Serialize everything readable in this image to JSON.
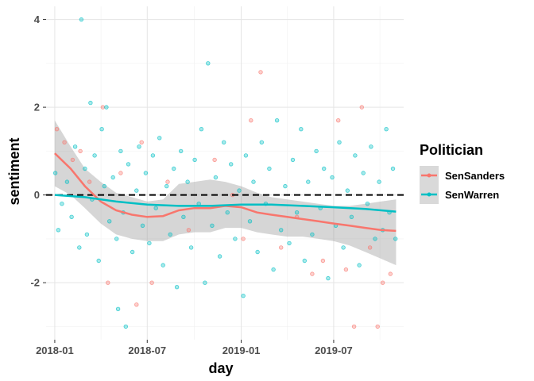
{
  "chart_data": {
    "type": "scatter",
    "xlabel": "day",
    "ylabel": "sentiment",
    "x_axis_type": "date",
    "xlim": [
      "2017-12-15",
      "2019-11-15"
    ],
    "ylim": [
      -3.3,
      4.3
    ],
    "x_ticks": [
      {
        "value": "2018-01-01",
        "label": "2018-01"
      },
      {
        "value": "2018-07-01",
        "label": "2018-07"
      },
      {
        "value": "2019-01-01",
        "label": "2019-01"
      },
      {
        "value": "2019-07-01",
        "label": "2019-07"
      }
    ],
    "y_ticks": [
      -2,
      0,
      2,
      4
    ],
    "y_tick_labels": [
      "-2",
      "0",
      "2",
      "4"
    ],
    "grid": true,
    "reference_line": {
      "y": 0,
      "style": "dashed",
      "color": "#000000"
    },
    "legend": {
      "title": "Politician",
      "position": "right"
    },
    "series": [
      {
        "name": "SenSanders",
        "color": "#F8766D",
        "points": [
          [
            "2018-01-05",
            1.5
          ],
          [
            "2018-01-20",
            1.2
          ],
          [
            "2018-02-05",
            0.8
          ],
          [
            "2018-02-20",
            1.0
          ],
          [
            "2018-03-10",
            0.3
          ],
          [
            "2018-04-05",
            2.0
          ],
          [
            "2018-04-15",
            -2.0
          ],
          [
            "2018-05-10",
            0.5
          ],
          [
            "2018-06-10",
            -2.5
          ],
          [
            "2018-06-20",
            1.2
          ],
          [
            "2018-07-10",
            -2.0
          ],
          [
            "2018-08-10",
            0.3
          ],
          [
            "2018-09-20",
            -0.8
          ],
          [
            "2018-11-10",
            0.8
          ],
          [
            "2018-12-15",
            0.0
          ],
          [
            "2019-01-05",
            -1.0
          ],
          [
            "2019-01-20",
            1.7
          ],
          [
            "2019-02-08",
            2.8
          ],
          [
            "2019-03-20",
            -1.2
          ],
          [
            "2019-04-20",
            -0.5
          ],
          [
            "2019-05-20",
            -1.8
          ],
          [
            "2019-06-10",
            -1.5
          ],
          [
            "2019-07-10",
            1.7
          ],
          [
            "2019-07-25",
            -1.7
          ],
          [
            "2019-08-10",
            -3.0
          ],
          [
            "2019-08-25",
            2.0
          ],
          [
            "2019-09-10",
            -1.2
          ],
          [
            "2019-09-25",
            -3.0
          ],
          [
            "2019-10-05",
            -2.0
          ],
          [
            "2019-10-20",
            -1.8
          ]
        ],
        "trend": [
          [
            "2018-01-01",
            0.95
          ],
          [
            "2018-02-01",
            0.6
          ],
          [
            "2018-03-01",
            0.2
          ],
          [
            "2018-04-01",
            -0.15
          ],
          [
            "2018-05-01",
            -0.35
          ],
          [
            "2018-06-01",
            -0.45
          ],
          [
            "2018-07-01",
            -0.5
          ],
          [
            "2018-08-01",
            -0.48
          ],
          [
            "2018-09-01",
            -0.35
          ],
          [
            "2018-10-01",
            -0.3
          ],
          [
            "2018-11-01",
            -0.3
          ],
          [
            "2018-12-01",
            -0.25
          ],
          [
            "2019-01-01",
            -0.28
          ],
          [
            "2019-02-01",
            -0.4
          ],
          [
            "2019-03-01",
            -0.45
          ],
          [
            "2019-04-01",
            -0.5
          ],
          [
            "2019-05-01",
            -0.55
          ],
          [
            "2019-06-01",
            -0.6
          ],
          [
            "2019-07-01",
            -0.65
          ],
          [
            "2019-08-01",
            -0.7
          ],
          [
            "2019-09-01",
            -0.75
          ],
          [
            "2019-10-01",
            -0.8
          ],
          [
            "2019-10-31",
            -0.82
          ]
        ],
        "band": [
          [
            "2018-01-01",
            1.7,
            0.2
          ],
          [
            "2018-02-01",
            1.1,
            0.0
          ],
          [
            "2018-03-01",
            0.6,
            -0.3
          ],
          [
            "2018-04-01",
            0.3,
            -0.65
          ],
          [
            "2018-05-01",
            0.05,
            -0.9
          ],
          [
            "2018-06-01",
            -0.05,
            -1.0
          ],
          [
            "2018-07-01",
            -0.15,
            -1.05
          ],
          [
            "2018-08-01",
            -0.1,
            -1.05
          ],
          [
            "2018-09-01",
            0.25,
            -0.9
          ],
          [
            "2018-10-01",
            0.3,
            -0.85
          ],
          [
            "2018-11-01",
            0.35,
            -0.85
          ],
          [
            "2018-12-01",
            0.3,
            -0.75
          ],
          [
            "2019-01-01",
            0.2,
            -0.75
          ],
          [
            "2019-02-01",
            0.05,
            -0.85
          ],
          [
            "2019-03-01",
            -0.05,
            -0.9
          ],
          [
            "2019-04-01",
            -0.1,
            -0.95
          ],
          [
            "2019-05-01",
            -0.15,
            -0.95
          ],
          [
            "2019-06-01",
            -0.2,
            -1.0
          ],
          [
            "2019-07-01",
            -0.25,
            -1.05
          ],
          [
            "2019-08-01",
            -0.25,
            -1.15
          ],
          [
            "2019-09-01",
            -0.2,
            -1.3
          ],
          [
            "2019-10-01",
            -0.15,
            -1.45
          ],
          [
            "2019-10-31",
            -0.1,
            -1.6
          ]
        ]
      },
      {
        "name": "SenWarren",
        "color": "#00BFC4",
        "points": [
          [
            "2018-01-02",
            0.5
          ],
          [
            "2018-01-08",
            -0.8
          ],
          [
            "2018-01-15",
            -0.2
          ],
          [
            "2018-01-25",
            0.3
          ],
          [
            "2018-02-03",
            -0.5
          ],
          [
            "2018-02-10",
            1.1
          ],
          [
            "2018-02-18",
            -1.2
          ],
          [
            "2018-02-22",
            4.0
          ],
          [
            "2018-03-01",
            0.6
          ],
          [
            "2018-03-05",
            -0.9
          ],
          [
            "2018-03-12",
            2.1
          ],
          [
            "2018-03-15",
            -0.1
          ],
          [
            "2018-03-20",
            0.9
          ],
          [
            "2018-03-28",
            -1.5
          ],
          [
            "2018-04-03",
            1.5
          ],
          [
            "2018-04-08",
            0.2
          ],
          [
            "2018-04-12",
            2.0
          ],
          [
            "2018-04-18",
            -0.6
          ],
          [
            "2018-04-25",
            0.4
          ],
          [
            "2018-05-02",
            -1.0
          ],
          [
            "2018-05-05",
            -2.6
          ],
          [
            "2018-05-10",
            1.0
          ],
          [
            "2018-05-15",
            -0.4
          ],
          [
            "2018-05-20",
            -3.0
          ],
          [
            "2018-05-25",
            0.7
          ],
          [
            "2018-06-02",
            -1.3
          ],
          [
            "2018-06-10",
            0.1
          ],
          [
            "2018-06-15",
            1.1
          ],
          [
            "2018-06-22",
            -0.7
          ],
          [
            "2018-06-28",
            0.5
          ],
          [
            "2018-07-05",
            -1.1
          ],
          [
            "2018-07-12",
            0.9
          ],
          [
            "2018-07-18",
            -0.3
          ],
          [
            "2018-07-25",
            1.3
          ],
          [
            "2018-08-01",
            -1.6
          ],
          [
            "2018-08-08",
            0.2
          ],
          [
            "2018-08-15",
            -0.9
          ],
          [
            "2018-08-22",
            0.6
          ],
          [
            "2018-08-28",
            -2.1
          ],
          [
            "2018-09-05",
            1.0
          ],
          [
            "2018-09-10",
            -0.5
          ],
          [
            "2018-09-18",
            0.3
          ],
          [
            "2018-09-25",
            -1.2
          ],
          [
            "2018-10-02",
            0.8
          ],
          [
            "2018-10-10",
            -0.2
          ],
          [
            "2018-10-15",
            1.5
          ],
          [
            "2018-10-22",
            -2.0
          ],
          [
            "2018-10-28",
            3.0
          ],
          [
            "2018-11-05",
            -0.7
          ],
          [
            "2018-11-12",
            0.4
          ],
          [
            "2018-11-20",
            -1.4
          ],
          [
            "2018-11-28",
            1.2
          ],
          [
            "2018-12-05",
            -0.4
          ],
          [
            "2018-12-12",
            0.7
          ],
          [
            "2018-12-20",
            -1.0
          ],
          [
            "2018-12-28",
            0.1
          ],
          [
            "2019-01-05",
            -2.3
          ],
          [
            "2019-01-10",
            0.9
          ],
          [
            "2019-01-18",
            -0.6
          ],
          [
            "2019-01-25",
            0.3
          ],
          [
            "2019-02-02",
            -1.3
          ],
          [
            "2019-02-10",
            1.2
          ],
          [
            "2019-02-18",
            -0.2
          ],
          [
            "2019-02-25",
            0.6
          ],
          [
            "2019-03-05",
            -1.7
          ],
          [
            "2019-03-12",
            1.7
          ],
          [
            "2019-03-20",
            -0.8
          ],
          [
            "2019-03-28",
            0.2
          ],
          [
            "2019-04-05",
            -1.1
          ],
          [
            "2019-04-12",
            0.8
          ],
          [
            "2019-04-20",
            -0.4
          ],
          [
            "2019-04-28",
            1.5
          ],
          [
            "2019-05-05",
            -1.5
          ],
          [
            "2019-05-12",
            0.3
          ],
          [
            "2019-05-20",
            -0.9
          ],
          [
            "2019-05-28",
            1.0
          ],
          [
            "2019-06-05",
            -0.3
          ],
          [
            "2019-06-12",
            0.6
          ],
          [
            "2019-06-20",
            -1.9
          ],
          [
            "2019-06-28",
            0.4
          ],
          [
            "2019-07-05",
            -0.7
          ],
          [
            "2019-07-12",
            1.2
          ],
          [
            "2019-07-20",
            -1.2
          ],
          [
            "2019-07-28",
            0.1
          ],
          [
            "2019-08-05",
            -0.5
          ],
          [
            "2019-08-12",
            0.9
          ],
          [
            "2019-08-20",
            -1.6
          ],
          [
            "2019-08-28",
            0.5
          ],
          [
            "2019-09-05",
            -0.2
          ],
          [
            "2019-09-12",
            1.1
          ],
          [
            "2019-09-20",
            -1.0
          ],
          [
            "2019-09-28",
            0.3
          ],
          [
            "2019-10-05",
            -0.8
          ],
          [
            "2019-10-12",
            1.5
          ],
          [
            "2019-10-18",
            -0.4
          ],
          [
            "2019-10-25",
            0.6
          ],
          [
            "2019-10-30",
            -1.0
          ]
        ],
        "trend": [
          [
            "2018-01-01",
            0.0
          ],
          [
            "2018-03-01",
            -0.05
          ],
          [
            "2018-05-01",
            -0.15
          ],
          [
            "2018-07-01",
            -0.22
          ],
          [
            "2018-09-01",
            -0.25
          ],
          [
            "2018-11-01",
            -0.25
          ],
          [
            "2019-01-01",
            -0.22
          ],
          [
            "2019-03-01",
            -0.22
          ],
          [
            "2019-05-01",
            -0.25
          ],
          [
            "2019-07-01",
            -0.28
          ],
          [
            "2019-09-01",
            -0.32
          ],
          [
            "2019-10-31",
            -0.38
          ]
        ]
      }
    ]
  }
}
